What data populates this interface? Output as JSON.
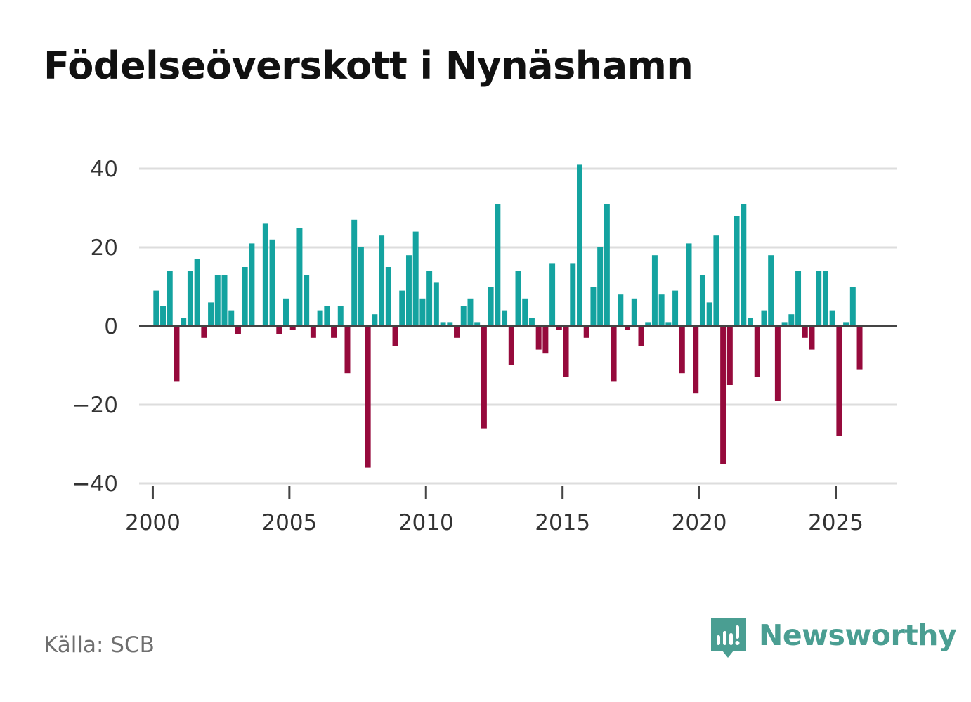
{
  "title": "Födelseöverskott i Nynäshamn",
  "source": "Källa: SCB",
  "brand": {
    "name": "Newsworthy",
    "icon": "newsworthy-logo-icon"
  },
  "colors": {
    "positive": "#14a3a0",
    "negative": "#960a3c",
    "grid": "#dddddd",
    "axis": "#444444",
    "brand": "#4a9e92"
  },
  "chart_data": {
    "type": "bar",
    "title": "Födelseöverskott i Nynäshamn",
    "xlabel": "",
    "ylabel": "",
    "ylim": [
      -40,
      40
    ],
    "xlim": [
      1999.5,
      2027.25
    ],
    "x_ticks": [
      2000,
      2005,
      2010,
      2015,
      2020,
      2025
    ],
    "y_ticks": [
      -40,
      -20,
      0,
      20,
      40
    ],
    "y_tick_labels": [
      "−40",
      "−20",
      "0",
      "20",
      "40"
    ],
    "grid": true,
    "period": "quarterly",
    "start": "2000 Q1",
    "values": [
      9,
      5,
      14,
      -14,
      2,
      14,
      17,
      -3,
      6,
      13,
      13,
      4,
      -2,
      15,
      21,
      0,
      26,
      22,
      -2,
      7,
      -1,
      25,
      13,
      -3,
      4,
      5,
      -3,
      5,
      -12,
      27,
      20,
      -36,
      3,
      23,
      15,
      -5,
      9,
      18,
      24,
      7,
      14,
      11,
      1,
      1,
      -3,
      5,
      7,
      1,
      -26,
      10,
      31,
      4,
      -10,
      14,
      7,
      2,
      -6,
      -7,
      16,
      -1,
      -13,
      16,
      41,
      -3,
      10,
      20,
      31,
      -14,
      8,
      -1,
      7,
      -5,
      1,
      18,
      8,
      1,
      9,
      -12,
      21,
      -17,
      13,
      6,
      23,
      -35,
      -15,
      28,
      31,
      2,
      -13,
      4,
      18,
      -19,
      1,
      3,
      14,
      -3,
      -6,
      14,
      14,
      4,
      -28,
      1,
      10,
      -11
    ]
  }
}
